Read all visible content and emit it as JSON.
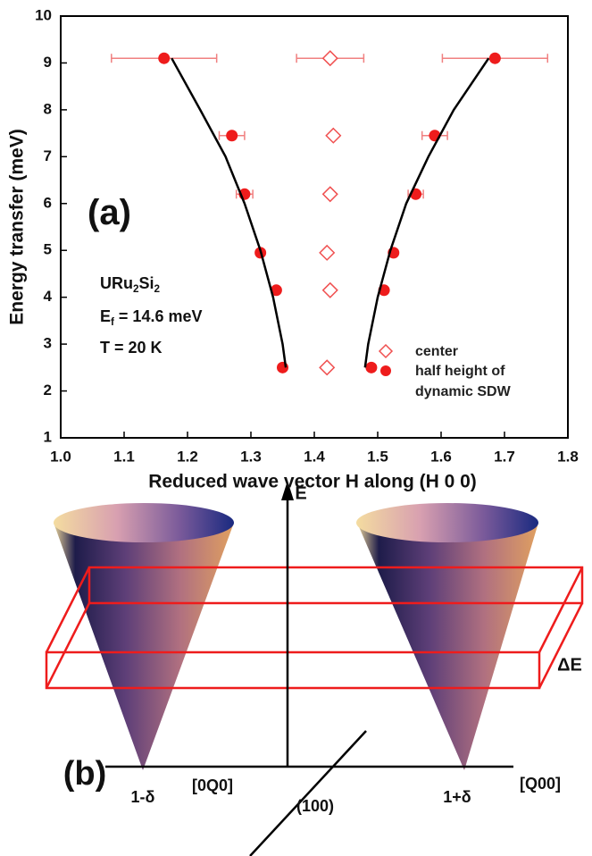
{
  "chart_data": {
    "type": "scatter",
    "xlabel": "Reduced wave vector H along (H 0 0)",
    "ylabel": "Energy transfer (meV)",
    "xlim": [
      1.0,
      1.8
    ],
    "ylim": [
      1,
      10
    ],
    "xticks": [
      {
        "value": 1.0,
        "label": "1.0"
      },
      1.1,
      1.2,
      1.3,
      1.4,
      1.5,
      1.6,
      1.7,
      1.8
    ],
    "yticks": [
      1,
      2,
      3,
      4,
      5,
      6,
      7,
      8,
      9,
      10
    ],
    "series": [
      {
        "name": "center",
        "color": "#f05050",
        "marker": "diamond",
        "x": [
          1.425,
          1.43,
          1.425,
          1.42,
          1.425,
          1.42
        ],
        "values": [
          9.1,
          7.45,
          6.2,
          4.95,
          4.15,
          2.5
        ],
        "xerr": [
          0.053,
          null,
          null,
          null,
          null,
          null
        ]
      },
      {
        "name": "half height of dynamic SDW",
        "color": "#ee1c1c",
        "marker": "circle",
        "x": [
          1.163,
          1.27,
          1.29,
          1.315,
          1.34,
          1.35,
          1.685,
          1.59,
          1.56,
          1.525,
          1.51,
          1.49
        ],
        "values": [
          9.1,
          7.45,
          6.2,
          4.95,
          4.15,
          2.5,
          9.1,
          7.45,
          6.2,
          4.95,
          4.15,
          2.5
        ],
        "xerr": [
          0.083,
          0.02,
          0.013,
          null,
          null,
          null,
          0.083,
          0.02,
          0.012,
          null,
          null,
          null
        ]
      },
      {
        "color": "#000000",
        "marker": "line",
        "x": [
          1.175,
          1.22,
          1.26,
          1.29,
          1.315,
          1.335,
          1.35,
          1.355
        ],
        "values": [
          9.1,
          8.0,
          7.0,
          6.0,
          5.0,
          4.0,
          3.0,
          2.5
        ]
      },
      {
        "color": "#000000",
        "marker": "line",
        "x": [
          1.48,
          1.485,
          1.5,
          1.52,
          1.545,
          1.58,
          1.62,
          1.675
        ],
        "values": [
          2.5,
          3.0,
          4.0,
          5.0,
          6.0,
          7.0,
          8.0,
          9.1
        ]
      }
    ],
    "annotations": [
      {
        "runs": [
          {
            "text": "(a)"
          }
        ]
      },
      {
        "runs": [
          {
            "text": "URu"
          },
          {
            "text": "2",
            "sub": true
          },
          {
            "text": "Si"
          },
          {
            "text": "2",
            "sub": true
          }
        ]
      },
      {
        "runs": [
          {
            "text": "E"
          },
          {
            "text": "f",
            "sub": true
          },
          {
            "text": " = 14.6 meV"
          }
        ]
      },
      {
        "runs": [
          {
            "text": "T = 20 K"
          }
        ]
      }
    ]
  },
  "diagram": {
    "panel": "(b)",
    "energy_axis": "E",
    "slab": "ΔE",
    "q_axis": "[Q00]",
    "q_perp_axis": "[0Q0]",
    "origin": "(100)",
    "left_cone": "1-δ",
    "right_cone": "1+δ"
  }
}
